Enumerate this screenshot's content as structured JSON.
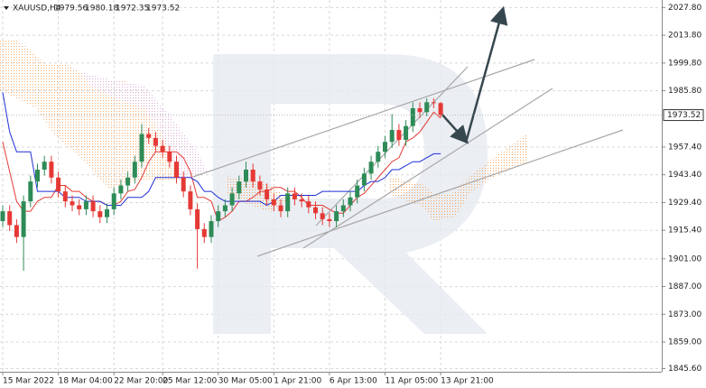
{
  "chart_data": {
    "type": "candlestick",
    "symbol": "XAUUSD,H4",
    "categories": [
      "15 Mar 2022",
      null,
      null,
      null,
      null,
      null,
      null,
      null,
      "18 Mar 04:00",
      null,
      null,
      null,
      null,
      null,
      null,
      null,
      "22 Mar 20:00",
      null,
      null,
      null,
      null,
      null,
      null,
      "25 Mar 12:00",
      null,
      null,
      null,
      null,
      null,
      null,
      null,
      "30 Mar 05:00",
      null,
      null,
      null,
      null,
      null,
      null,
      null,
      "1 Apr 21:00",
      null,
      null,
      null,
      null,
      null,
      null,
      null,
      "6 Apr 13:00",
      null,
      null,
      null,
      null,
      null,
      null,
      null,
      "11 Apr 05:00",
      null,
      null,
      null,
      null,
      null,
      null,
      null,
      "13 Apr 21:00"
    ],
    "candles": {
      "open": [
        1920,
        1925,
        1918,
        1912,
        1930,
        1940,
        1946,
        1950,
        1942,
        1935,
        1930,
        1928,
        1926,
        1930,
        1925,
        1922,
        1926,
        1934,
        1938,
        1942,
        1950,
        1964,
        1962,
        1958,
        1955,
        1950,
        1942,
        1935,
        1926,
        1916,
        1912,
        1920,
        1925,
        1928,
        1934,
        1940,
        1946,
        1940,
        1936,
        1931,
        1928,
        1925,
        1934,
        1931,
        1930,
        1927,
        1924,
        1921,
        1920,
        1925,
        1928,
        1932,
        1938,
        1944,
        1950,
        1955,
        1960,
        1966,
        1961,
        1968,
        1977,
        1975,
        1980,
        1979.56
      ],
      "high": [
        1928,
        1928,
        1921,
        1933,
        1943,
        1949,
        1953,
        1953,
        1945,
        1938,
        1933,
        1931,
        1933,
        1933,
        1928,
        1929,
        1937,
        1941,
        1945,
        1953,
        1969,
        1967,
        1965,
        1961,
        1958,
        1953,
        1945,
        1938,
        1929,
        1919,
        1923,
        1928,
        1931,
        1937,
        1943,
        1950,
        1949,
        1943,
        1939,
        1934,
        1931,
        1937,
        1937,
        1934,
        1933,
        1930,
        1927,
        1924,
        1928,
        1931,
        1935,
        1941,
        1947,
        1953,
        1958,
        1963,
        1974,
        1969,
        1971,
        1980,
        1980,
        1982,
        1982,
        1980.18
      ],
      "low": [
        1917,
        1915,
        1909,
        1895,
        1927,
        1937,
        1943,
        1939,
        1932,
        1927,
        1925,
        1923,
        1923,
        1922,
        1919,
        1919,
        1923,
        1931,
        1935,
        1939,
        1947,
        1959,
        1955,
        1952,
        1947,
        1939,
        1932,
        1923,
        1896,
        1909,
        1909,
        1917,
        1922,
        1925,
        1931,
        1937,
        1937,
        1933,
        1928,
        1925,
        1922,
        1922,
        1928,
        1927,
        1924,
        1921,
        1918,
        1917,
        1917,
        1922,
        1925,
        1929,
        1935,
        1941,
        1947,
        1952,
        1957,
        1958,
        1958,
        1965,
        1972,
        1973,
        1977,
        1972.35
      ],
      "close": [
        1925,
        1918,
        1912,
        1930,
        1940,
        1946,
        1950,
        1942,
        1935,
        1930,
        1928,
        1926,
        1930,
        1925,
        1922,
        1926,
        1934,
        1938,
        1942,
        1950,
        1964,
        1962,
        1958,
        1955,
        1950,
        1942,
        1935,
        1926,
        1916,
        1912,
        1920,
        1925,
        1928,
        1934,
        1940,
        1946,
        1940,
        1936,
        1931,
        1928,
        1925,
        1934,
        1931,
        1930,
        1927,
        1924,
        1921,
        1920,
        1925,
        1928,
        1932,
        1938,
        1944,
        1950,
        1955,
        1960,
        1966,
        1961,
        1968,
        1977,
        1975,
        1980,
        1979.56,
        1973.52
      ],
      "up_color": "#2e8b57",
      "down_color": "#e53935"
    },
    "series": [
      {
        "color": "#e53935",
        "values": [
          1960,
          1945,
          1930,
          1925,
          1925,
          1930,
          1932,
          1932,
          1938,
          1938,
          1935,
          1935,
          1932,
          1930,
          1930,
          1928,
          1928,
          1930,
          1935,
          1936,
          1942,
          1950,
          1955,
          1955,
          1955,
          1955,
          1952,
          1945,
          1932,
          1932,
          1930,
          1920,
          1922,
          1925,
          1930,
          1930,
          1932,
          1935,
          1935,
          1937,
          1937,
          1935,
          1935,
          1932,
          1928,
          1928,
          1928,
          1926,
          1924,
          1924,
          1928,
          1932,
          1934,
          1938,
          1942,
          1946,
          1950,
          1952,
          1960,
          1962,
          1965,
          1970,
          1975,
          1972
        ]
      },
      {
        "color": "#1e2fd6",
        "values": [
          1985,
          1965,
          1955,
          1955,
          1955,
          1935,
          1935,
          1935,
          1935,
          1932,
          1932,
          1932,
          1930,
          1930,
          1930,
          1928,
          1928,
          1928,
          1932,
          1932,
          1932,
          1935,
          1942,
          1942,
          1942,
          1942,
          1942,
          1942,
          1940,
          1935,
          1935,
          1932,
          1930,
          1930,
          1930,
          1930,
          1930,
          1930,
          1928,
          1930,
          1933,
          1933,
          1933,
          1933,
          1933,
          1933,
          1935,
          1935,
          1935,
          1935,
          1935,
          1935,
          1938,
          1940,
          1940,
          1942,
          1946,
          1946,
          1948,
          1950,
          1950,
          1952,
          1954,
          1954
        ]
      }
    ],
    "ylim": [
      1844,
      2031.6
    ],
    "yticks": [
      {
        "value": 2027.8,
        "label": "2027.80"
      },
      {
        "value": 2013.8,
        "label": "2013.80"
      },
      {
        "value": 1999.8,
        "label": "1999.80"
      },
      {
        "value": 1985.8,
        "label": "1985.80"
      },
      {
        "value": 1957.4,
        "label": "1957.40"
      },
      {
        "value": 1943.4,
        "label": "1943.40"
      },
      {
        "value": 1929.4,
        "label": "1929.40"
      },
      {
        "value": 1915.4,
        "label": "1915.40"
      },
      {
        "value": 1901,
        "label": "1901.00"
      },
      {
        "value": 1887,
        "label": "1887.00"
      },
      {
        "value": 1873,
        "label": "1873.00"
      },
      {
        "value": 1859,
        "label": "1859.00"
      },
      {
        "value": 1845.6,
        "label": "1845.60"
      }
    ],
    "grid": true
  }
}
